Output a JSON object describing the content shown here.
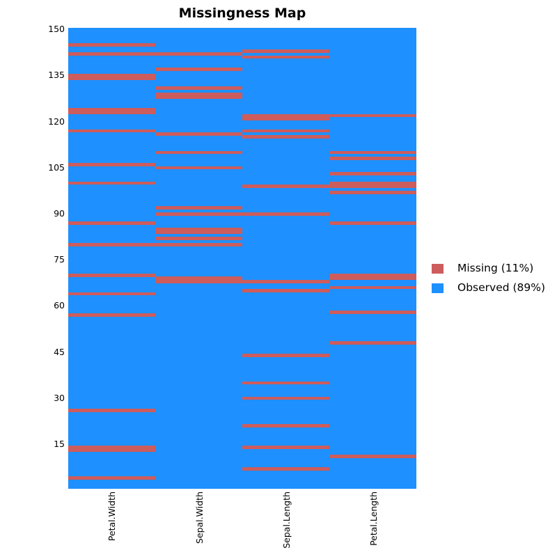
{
  "chart_data": {
    "type": "heatmap",
    "title": "Missingness Map",
    "xlabel": "",
    "ylabel": "",
    "n_rows": 150,
    "ylim": [
      1,
      150
    ],
    "yticks": [
      15,
      30,
      45,
      60,
      75,
      90,
      105,
      120,
      135,
      150
    ],
    "columns": [
      "Petal.Width",
      "Sepal.Width",
      "Sepal.Length",
      "Petal.Length"
    ],
    "missing_rows": {
      "Petal.Width": [
        4,
        13,
        14,
        26,
        57,
        64,
        70,
        80,
        87,
        100,
        106,
        117,
        123,
        124,
        134,
        135,
        142,
        145
      ],
      "Sepal.Width": [
        68,
        69,
        80,
        82,
        84,
        85,
        90,
        92,
        105,
        110,
        116,
        128,
        129,
        131,
        137,
        142
      ],
      "Sepal.Length": [
        7,
        14,
        21,
        30,
        35,
        44,
        65,
        68,
        90,
        99,
        115,
        117,
        121,
        122,
        141,
        143
      ],
      "Petal.Length": [
        11,
        48,
        58,
        66,
        69,
        70,
        87,
        97,
        99,
        100,
        103,
        108,
        110,
        122
      ]
    },
    "legend": [
      {
        "label": "Missing (11%)",
        "color": "#CD5C5C"
      },
      {
        "label": "Observed (89%)",
        "color": "#1E90FF"
      }
    ],
    "legend_position": "right",
    "grid": false
  },
  "colors": {
    "missing": "#CD5C5C",
    "observed": "#1E90FF"
  }
}
